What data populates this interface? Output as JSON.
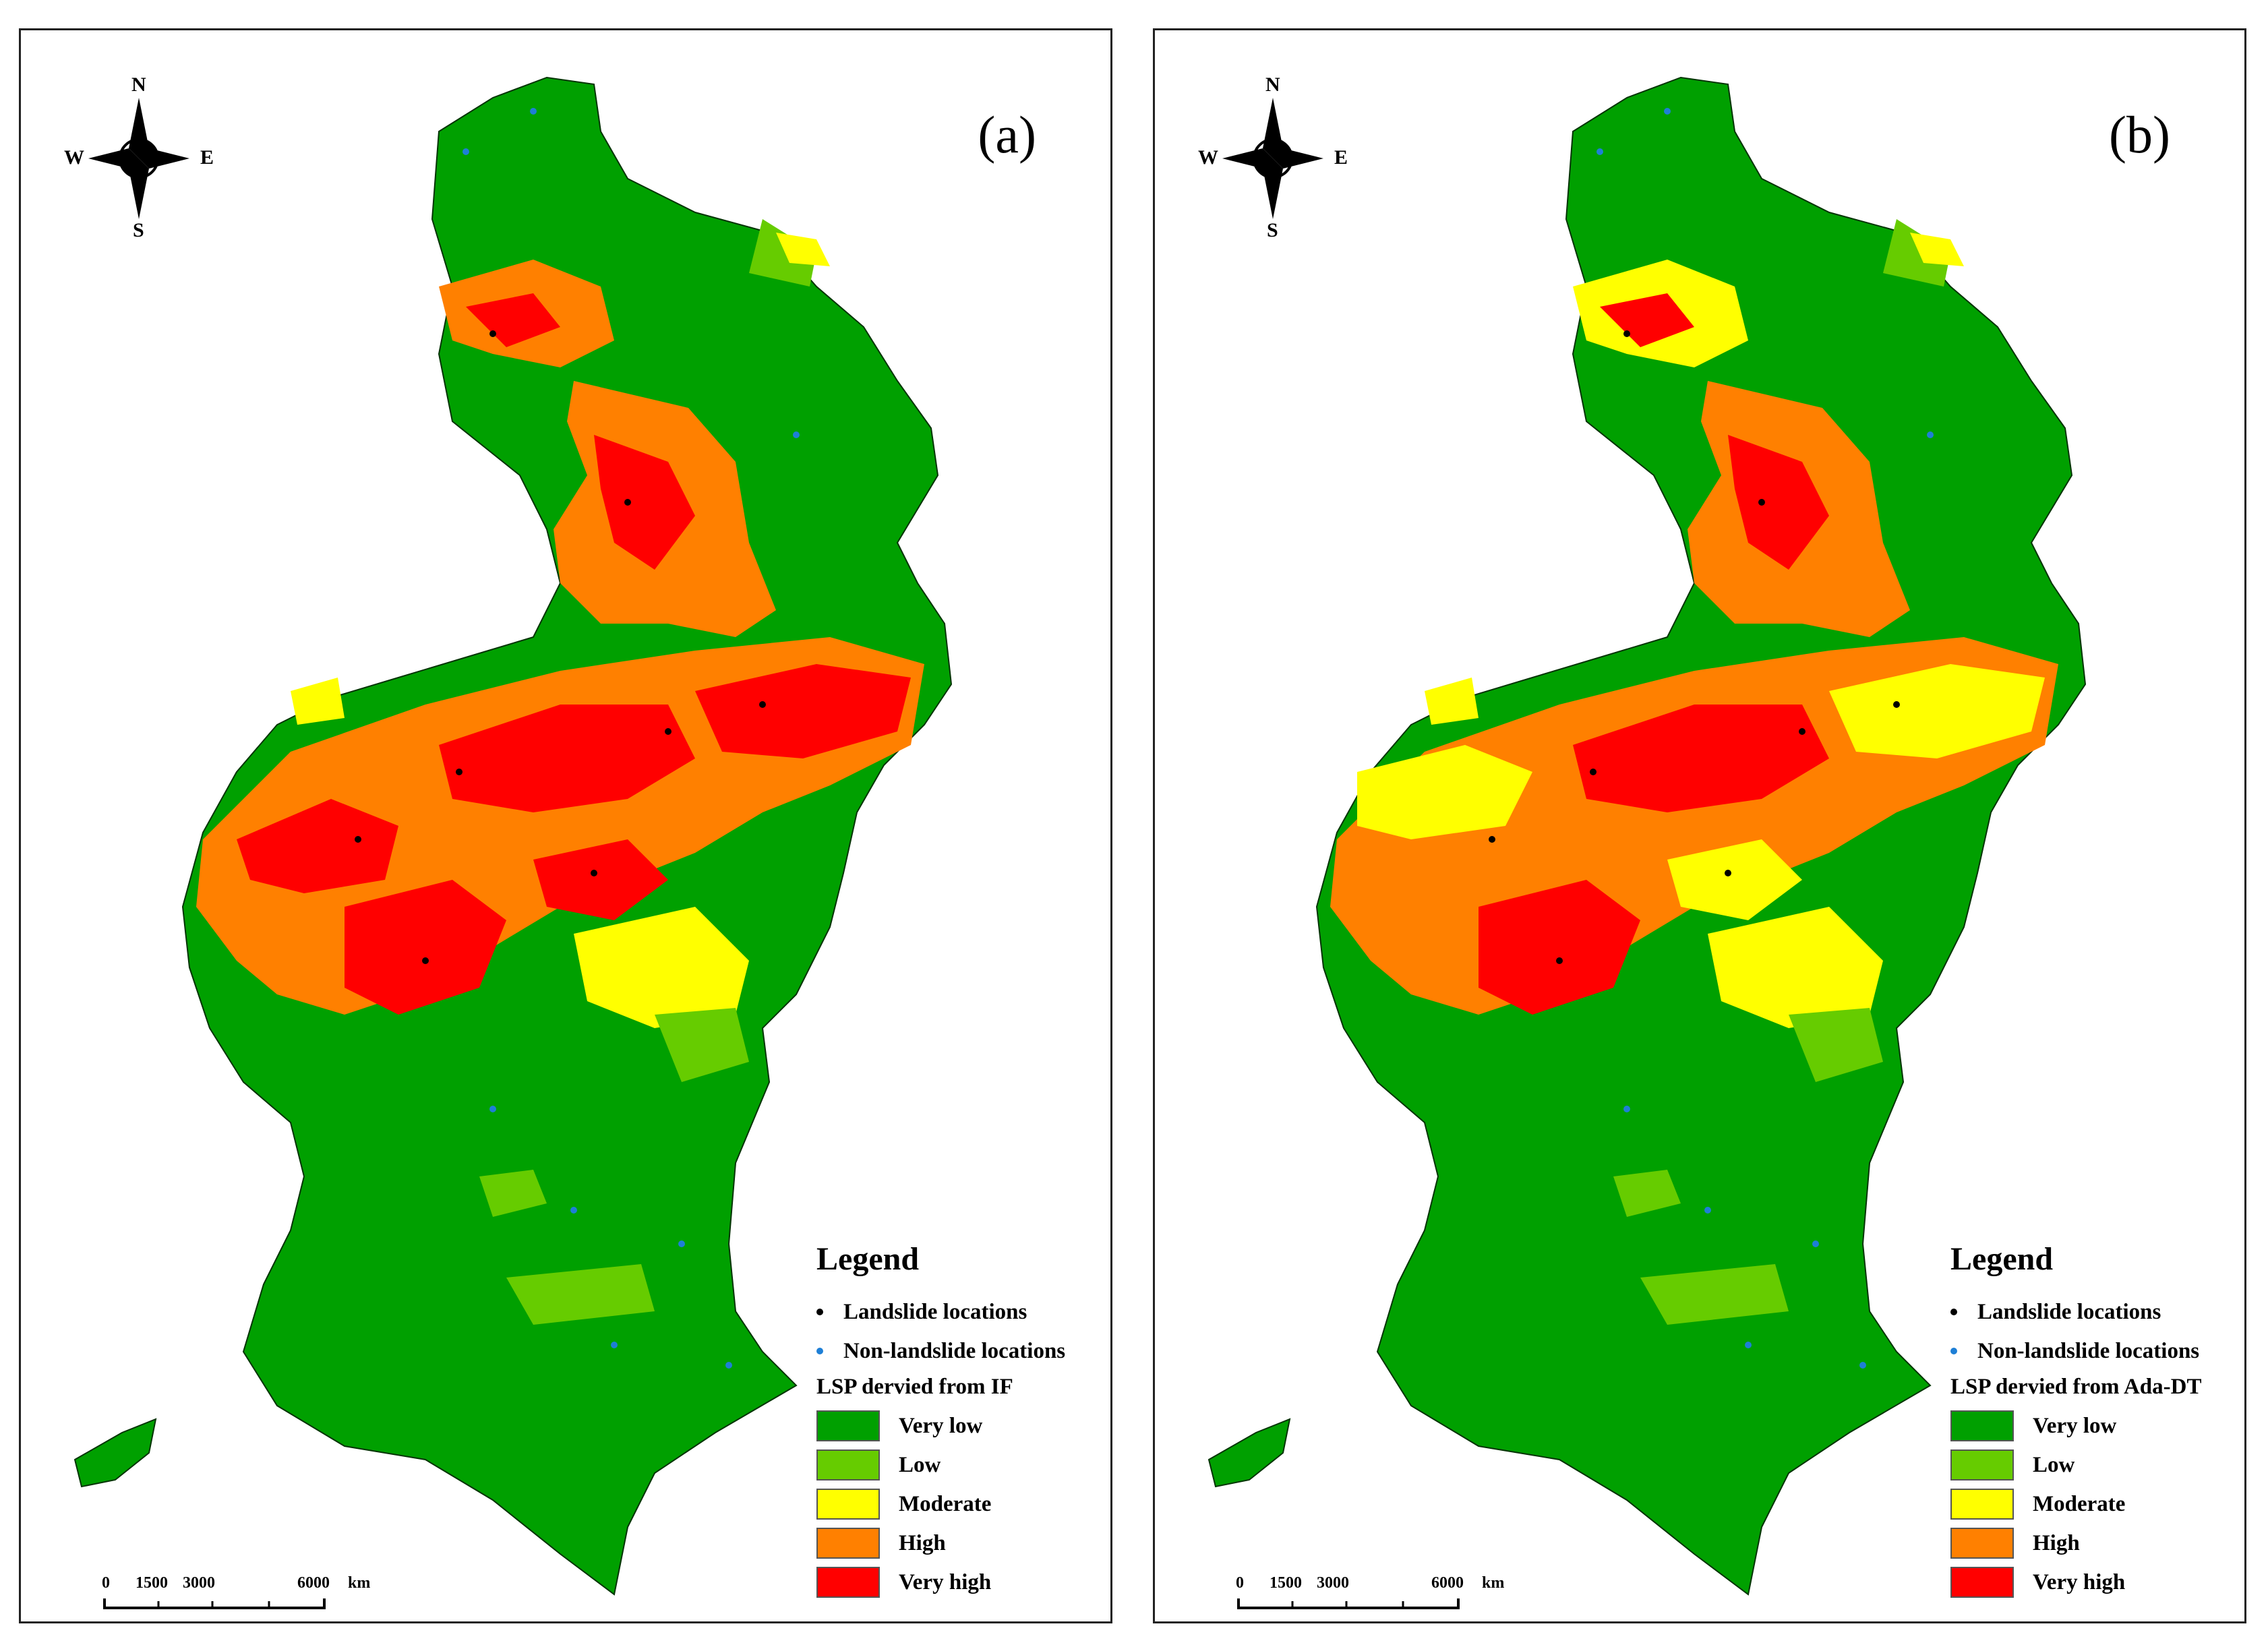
{
  "panels": [
    {
      "label": "(a)",
      "legend_title": "Legend",
      "point_legend": [
        "Landslide locations",
        "Non-landslide locations"
      ],
      "lsp_title": "LSP dervied from IF",
      "classes": [
        "Very low",
        "Low",
        "Moderate",
        "High",
        "Very high"
      ]
    },
    {
      "label": "(b)",
      "legend_title": "Legend",
      "point_legend": [
        "Landslide locations",
        "Non-landslide locations"
      ],
      "lsp_title": "LSP dervied from Ada-DT",
      "classes": [
        "Very low",
        "Low",
        "Moderate",
        "High",
        "Very high"
      ]
    }
  ],
  "compass": {
    "n": "N",
    "s": "S",
    "e": "E",
    "w": "W"
  },
  "scale": {
    "ticks": [
      "0",
      "1500",
      "3000",
      "6000"
    ],
    "unit": "km"
  },
  "colors": {
    "very_low": "#00a000",
    "low": "#66cc00",
    "moderate": "#ffff00",
    "high": "#ff8000",
    "very_high": "#ff0000",
    "landslide": "#000000",
    "non_landslide": "#1e7fd6"
  }
}
